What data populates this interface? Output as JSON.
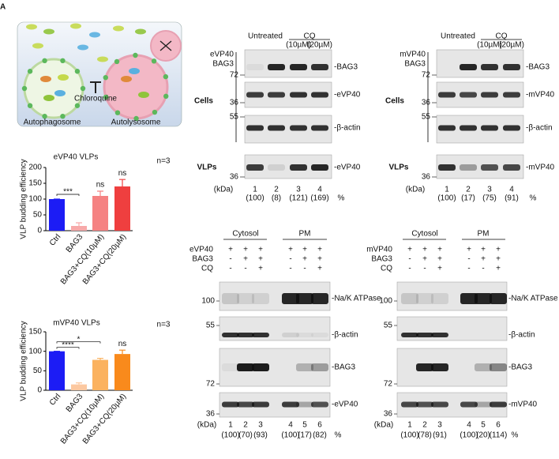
{
  "panel_letter": "A",
  "schematic": {
    "labels": [
      "Autophagosome",
      "Chloroquine",
      "Autolysosome"
    ]
  },
  "chart_data": [
    {
      "type": "bar",
      "title": "eVP40 VLPs",
      "note": "n=3",
      "y_label": "VLP budding efficiency",
      "categories": [
        "Ctrl",
        "BAG3",
        "BAG3+CQ(10µM)",
        "BAG3+CQ(20µM)"
      ],
      "values": [
        100,
        15,
        110,
        140
      ],
      "errors": [
        0,
        10,
        15,
        22
      ],
      "colors": [
        "#1c1cf5",
        "#f7a9a9",
        "#f58282",
        "#ef3f3f"
      ],
      "ylim": [
        0,
        200
      ],
      "yticks": [
        0,
        50,
        100,
        150,
        200
      ],
      "annotations": [
        "***",
        "ns",
        "ns"
      ]
    },
    {
      "type": "bar",
      "title": "mVP40 VLPs",
      "note": "n=3",
      "y_label": "VLP budding efficiency",
      "categories": [
        "Ctrl",
        "BAG3",
        "BAG3+CQ(10µM)",
        "BAG3+CQ(20µM)"
      ],
      "values": [
        100,
        15,
        78,
        93
      ],
      "errors": [
        0,
        4,
        4,
        10
      ],
      "colors": [
        "#1c1cf5",
        "#fcc8a0",
        "#fbb25f",
        "#f98a1c"
      ],
      "ylim": [
        0,
        150
      ],
      "yticks": [
        0,
        50,
        100,
        150
      ],
      "annotations": [
        "****",
        "*",
        "ns"
      ]
    }
  ],
  "blots": [
    {
      "groups": [
        "Untreated",
        "CQ"
      ],
      "doses": [
        "(10µM)",
        "(20µM)"
      ],
      "rows": [
        {
          "label": "eVP40",
          "signs": [
            "+",
            "+",
            "+",
            "+"
          ]
        },
        {
          "label": "BAG3",
          "signs": [
            "-",
            "+",
            "+",
            "+"
          ]
        }
      ],
      "sections": [
        "Cells",
        "VLPs"
      ],
      "bands": [
        {
          "label": "-BAG3",
          "marker": "72"
        },
        {
          "label": "-eVP40",
          "marker": "36"
        },
        {
          "label": "-β-actin",
          "marker": "55"
        },
        {
          "label": "-eVP40",
          "marker": "36"
        }
      ],
      "kda": "(kDa)",
      "lanes": [
        "1",
        "2",
        "3",
        "4"
      ],
      "quant": [
        "(100)",
        "(8)",
        "(121)",
        "(169)"
      ],
      "unit": "%"
    },
    {
      "groups": [
        "Untreated",
        "CQ"
      ],
      "doses": [
        "(10µM)",
        "(20µM)"
      ],
      "rows": [
        {
          "label": "mVP40",
          "signs": [
            "+",
            "+",
            "+",
            "+"
          ]
        },
        {
          "label": "BAG3",
          "signs": [
            "-",
            "+",
            "+",
            "+"
          ]
        }
      ],
      "sections": [
        "Cells",
        "VLPs"
      ],
      "bands": [
        {
          "label": "-BAG3",
          "marker": "72"
        },
        {
          "label": "-mVP40",
          "marker": "36"
        },
        {
          "label": "-β-actin",
          "marker": "55"
        },
        {
          "label": "-mVP40",
          "marker": "36"
        }
      ],
      "kda": "(kDa)",
      "lanes": [
        "1",
        "2",
        "3",
        "4"
      ],
      "quant": [
        "(100)",
        "(17)",
        "(75)",
        "(91)"
      ],
      "unit": "%"
    },
    {
      "groups": [
        "Cytosol",
        "PM"
      ],
      "rows": [
        {
          "label": "eVP40",
          "signs": [
            "+",
            "+",
            "+",
            "+",
            "+",
            "+"
          ]
        },
        {
          "label": "BAG3",
          "signs": [
            "-",
            "+",
            "+",
            "-",
            "+",
            "+"
          ]
        },
        {
          "label": "CQ",
          "signs": [
            "-",
            "-",
            "+",
            "-",
            "-",
            "+"
          ]
        }
      ],
      "bands": [
        {
          "label": "-Na/K ATPase",
          "marker": "100"
        },
        {
          "label": "-β-actin",
          "marker": "55"
        },
        {
          "label": "-BAG3",
          "marker": "72"
        },
        {
          "label": "-eVP40",
          "marker": "36"
        }
      ],
      "kda": "(kDa)",
      "lanes": [
        "1",
        "2",
        "3",
        "4",
        "5",
        "6"
      ],
      "quant": [
        "(100)",
        "(70)",
        "(93)",
        "(100)",
        "(17)",
        "(82)"
      ],
      "unit": "%"
    },
    {
      "groups": [
        "Cytosol",
        "PM"
      ],
      "rows": [
        {
          "label": "mVP40",
          "signs": [
            "+",
            "+",
            "+",
            "+",
            "+",
            "+"
          ]
        },
        {
          "label": "BAG3",
          "signs": [
            "-",
            "+",
            "+",
            "-",
            "+",
            "+"
          ]
        },
        {
          "label": "CQ",
          "signs": [
            "-",
            "-",
            "+",
            "-",
            "-",
            "+"
          ]
        }
      ],
      "bands": [
        {
          "label": "-Na/K ATPase",
          "marker": "100"
        },
        {
          "label": "-β-actin",
          "marker": "55"
        },
        {
          "label": "-BAG3",
          "marker": "72"
        },
        {
          "label": "-mVP40",
          "marker": "36"
        }
      ],
      "kda": "(kDa)",
      "lanes": [
        "1",
        "2",
        "3",
        "4",
        "5",
        "6"
      ],
      "quant": [
        "(100)",
        "(78)",
        "(91)",
        "(100)",
        "(20)",
        "(114)"
      ],
      "unit": "%"
    }
  ]
}
